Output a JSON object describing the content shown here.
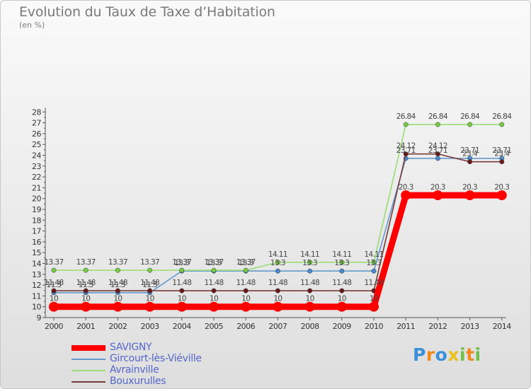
{
  "header": {
    "title": "Evolution du Taux de Taxe d’Habitation",
    "unit": "(en %)"
  },
  "chart_data": {
    "type": "line",
    "title": "Evolution du Taux de Taxe d’Habitation",
    "ylabel": "(en %)",
    "xlabel": "",
    "x": [
      "2000",
      "2001",
      "2002",
      "2003",
      "2004",
      "2005",
      "2006",
      "2007",
      "2008",
      "2009",
      "2010",
      "2011",
      "2012",
      "2013",
      "2014"
    ],
    "ylim": [
      9,
      28
    ],
    "yticks": [
      9,
      10,
      11,
      12,
      13,
      14,
      15,
      16,
      17,
      18,
      19,
      20,
      21,
      22,
      23,
      24,
      25,
      26,
      27,
      28
    ],
    "grid": false,
    "legend_position": "bottom-left",
    "series": [
      {
        "name": "SAVIGNY",
        "color": "#ff0000",
        "thick": true,
        "values": [
          10,
          10,
          10,
          10,
          10,
          10,
          10,
          10,
          10,
          10,
          10,
          20.3,
          20.3,
          20.3,
          20.3
        ],
        "labels": [
          "10",
          "10",
          "10",
          "10",
          "10",
          "10",
          "10",
          "10",
          "10",
          "10",
          "10",
          "20.3",
          "20.3",
          "20.3",
          "20.3"
        ]
      },
      {
        "name": "Gircourt-lès-Viéville",
        "color": "#6699cc",
        "marker": "#4a8ad0",
        "values": [
          11.3,
          11.3,
          11.3,
          11.3,
          13.3,
          13.3,
          13.3,
          13.3,
          13.3,
          13.3,
          13.3,
          23.71,
          23.71,
          23.71,
          23.71
        ],
        "labels": [
          "11.3",
          "11.3",
          "11.3",
          "11.3",
          "13.3",
          "13.3",
          "13.3",
          "13.3",
          "13.3",
          "13.3",
          "13.3",
          "23.71",
          "23.71",
          "23.71",
          "23.71"
        ]
      },
      {
        "name": "Avrainville",
        "color": "#99dd77",
        "marker": "#77cc44",
        "values": [
          13.37,
          13.37,
          13.37,
          13.37,
          13.37,
          13.37,
          13.37,
          14.11,
          14.11,
          14.11,
          14.11,
          26.84,
          26.84,
          26.84,
          26.84
        ],
        "labels": [
          "13.37",
          "13.37",
          "13.37",
          "13.37",
          "13.37",
          "13.37",
          "13.37",
          "14.11",
          "14.11",
          "14.11",
          "14.11",
          "26.84",
          "26.84",
          "26.84",
          "26.84"
        ]
      },
      {
        "name": "Bouxurulles",
        "color": "#7a3a3a",
        "marker": "#6a1a1a",
        "values": [
          11.48,
          11.48,
          11.48,
          11.48,
          11.48,
          11.48,
          11.48,
          11.48,
          11.48,
          11.48,
          11.48,
          24.12,
          24.12,
          23.4,
          23.4
        ],
        "labels": [
          "11.48",
          "11.48",
          "11.48",
          "11.48",
          "11.48",
          "11.48",
          "11.48",
          "11.48",
          "11.48",
          "11.48",
          "11.48",
          "24.12",
          "24.12",
          "23.4",
          "23.4"
        ]
      }
    ]
  },
  "legend": {
    "items": [
      {
        "label": "SAVIGNY",
        "color": "#ff0000"
      },
      {
        "label": "Gircourt-lès-Viéville",
        "color": "#6699cc"
      },
      {
        "label": "Avrainville",
        "color": "#99dd77"
      },
      {
        "label": "Bouxurulles",
        "color": "#7a3a3a"
      }
    ]
  },
  "logo": {
    "text": "Proxiti",
    "letters": [
      {
        "ch": "P",
        "color": "#3a8fd8"
      },
      {
        "ch": "r",
        "color": "#f08a1c"
      },
      {
        "ch": "o",
        "color": "#3a8fd8"
      },
      {
        "ch": "x",
        "color": "#e8c21a"
      },
      {
        "ch": "i",
        "color": "#6dc04a"
      },
      {
        "ch": "t",
        "color": "#f08a1c"
      },
      {
        "ch": "i",
        "color": "#6dc04a"
      }
    ]
  }
}
